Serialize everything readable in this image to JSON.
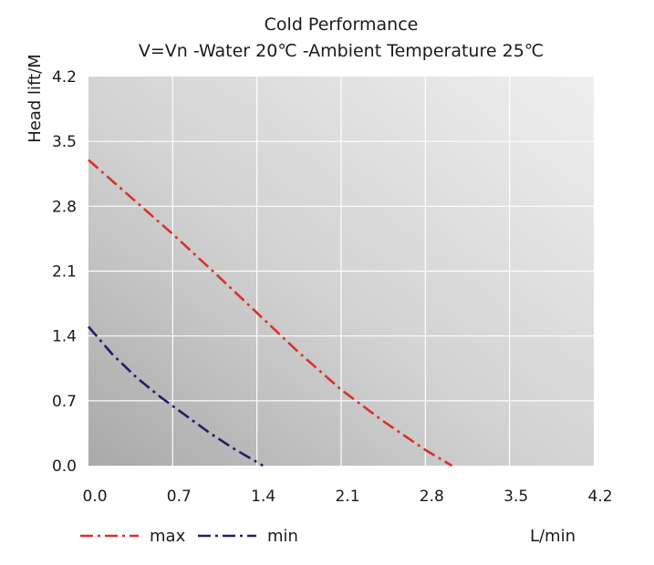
{
  "chart_data": {
    "type": "line",
    "title": "Cold Performance",
    "subtitle": "V=Vn -Water 20℃ -Ambient Temperature 25℃",
    "xlabel": "L/min",
    "ylabel": "Head lift/M",
    "xlim": [
      0,
      4.2
    ],
    "ylim": [
      0,
      4.2
    ],
    "xticks": [
      "0.0",
      "0.7",
      "1.4",
      "2.1",
      "2.8",
      "3.5",
      "4.2"
    ],
    "yticks": [
      "0.0",
      "0.7",
      "1.4",
      "2.1",
      "2.8",
      "3.5",
      "4.2"
    ],
    "grid": true,
    "legend_position": "bottom-left",
    "series": [
      {
        "name": "max",
        "color": "#d8322a",
        "x": [
          0.0,
          0.35,
          0.7,
          1.05,
          1.4,
          1.75,
          2.1,
          2.45,
          2.8,
          3.02
        ],
        "y": [
          3.3,
          2.9,
          2.5,
          2.08,
          1.65,
          1.22,
          0.82,
          0.48,
          0.17,
          0.0
        ]
      },
      {
        "name": "min",
        "color": "#1f1f6b",
        "x": [
          0.0,
          0.2,
          0.4,
          0.6,
          0.8,
          1.0,
          1.2,
          1.45
        ],
        "y": [
          1.5,
          1.2,
          0.95,
          0.74,
          0.55,
          0.36,
          0.19,
          0.0
        ]
      }
    ]
  }
}
